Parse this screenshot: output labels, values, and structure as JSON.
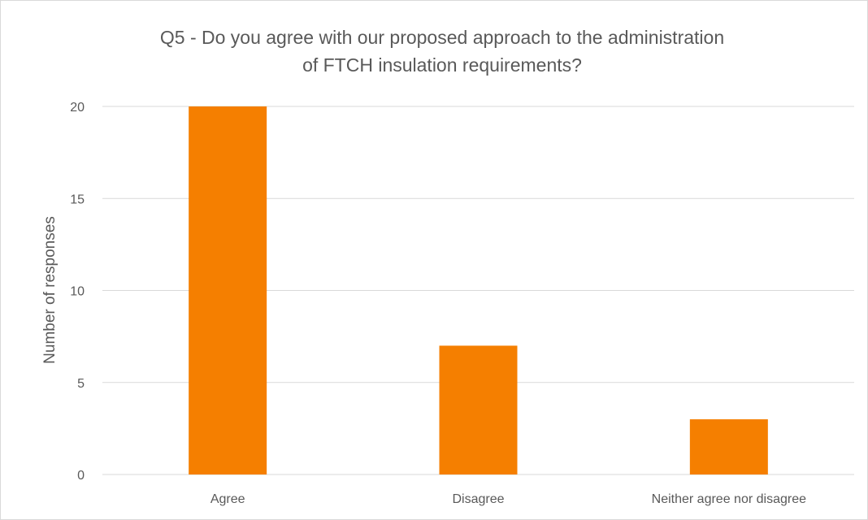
{
  "chart_data": {
    "type": "bar",
    "title_lines": [
      "Q5 - Do you agree with our proposed approach to the administration",
      "of FTCH insulation requirements?"
    ],
    "xlabel": "",
    "ylabel": "Number of responses",
    "categories": [
      "Agree",
      "Disagree",
      "Neither agree nor disagree"
    ],
    "values": [
      20,
      7,
      3
    ],
    "ylim": [
      0,
      20
    ],
    "yticks": [
      0,
      5,
      10,
      15,
      20
    ],
    "grid": true,
    "legend": "none",
    "bar_color": "#F57F00",
    "grid_color": "#D9D9D9"
  }
}
